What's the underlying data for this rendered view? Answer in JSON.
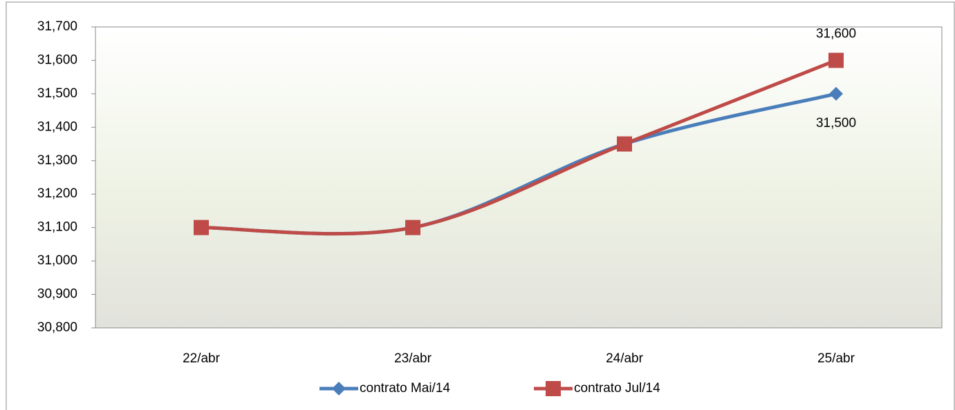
{
  "chart_data": {
    "type": "line",
    "categories": [
      "22/abr",
      "23/abr",
      "24/abr",
      "25/abr"
    ],
    "series": [
      {
        "name": "contrato Mai/14",
        "color": "#4a7ebb",
        "marker": "diamond",
        "values": [
          31100,
          31100,
          31350,
          31500
        ],
        "value_labels": [
          null,
          null,
          null,
          "31,500"
        ]
      },
      {
        "name": "contrato Jul/14",
        "color": "#be4b48",
        "marker": "square",
        "values": [
          31100,
          31100,
          31350,
          31600
        ],
        "value_labels": [
          null,
          null,
          null,
          "31,600"
        ]
      }
    ],
    "ylim": [
      30800,
      31700
    ],
    "yticks": [
      {
        "value": 30800,
        "label": "30,800"
      },
      {
        "value": 30900,
        "label": "30,900"
      },
      {
        "value": 31000,
        "label": "31,000"
      },
      {
        "value": 31100,
        "label": "31,100"
      },
      {
        "value": 31200,
        "label": "31,200"
      },
      {
        "value": 31300,
        "label": "31,300"
      },
      {
        "value": 31400,
        "label": "31,400"
      },
      {
        "value": 31500,
        "label": "31,500"
      },
      {
        "value": 31600,
        "label": "31,600"
      },
      {
        "value": 31700,
        "label": "31,700"
      }
    ],
    "smooth": true,
    "legend": "bottom"
  }
}
